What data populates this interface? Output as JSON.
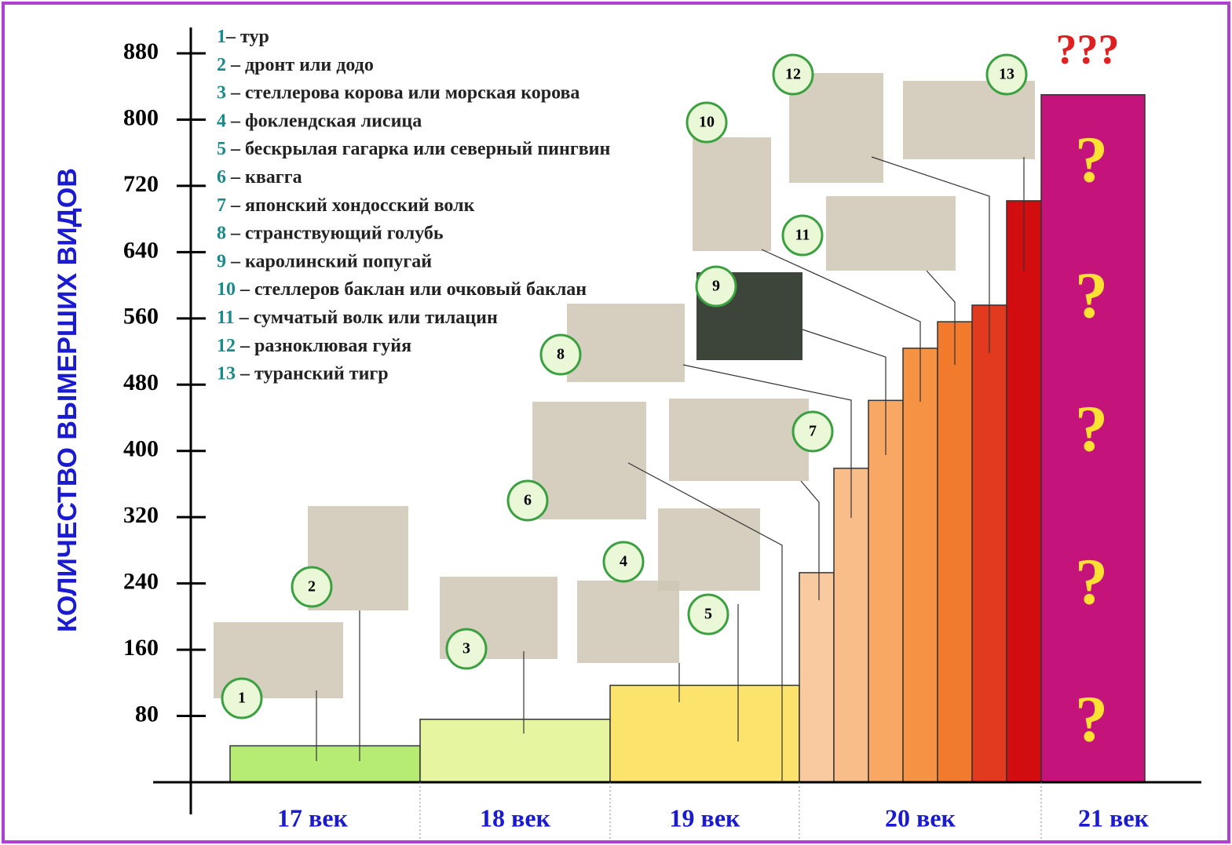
{
  "chart_data": {
    "type": "step-bar",
    "y_label": "КОЛИЧЕСТВО  ВЫМЕРШИХ  ВИДОВ",
    "categories": [
      "17 век",
      "18 век",
      "19 век",
      "20 век",
      "21 век"
    ],
    "steps": {
      "values": [
        44,
        76,
        117,
        253,
        379,
        461,
        524,
        556,
        576,
        702,
        830
      ],
      "colors": [
        "#b6ec74",
        "#e6f6a0",
        "#fbe36c",
        "#f9caa0",
        "#f9bd8a",
        "#f8a862",
        "#f69244",
        "#f17a2c",
        "#e23a1e",
        "#d10d10",
        "#c4137a"
      ]
    },
    "ylim": [
      0,
      880
    ],
    "yticks": [
      80,
      160,
      240,
      320,
      400,
      480,
      560,
      640,
      720,
      800,
      880
    ],
    "legend_items": [
      {
        "number": "1",
        "text": "– тур"
      },
      {
        "number": "2",
        "text": " – дронт  или  додо"
      },
      {
        "number": "3",
        "text": " – стеллерова корова  или  морская корова"
      },
      {
        "number": "4",
        "text": " – фоклендская лисица"
      },
      {
        "number": "5",
        "text": " – бескрылая гагарка или северный пингвин"
      },
      {
        "number": "6",
        "text": " – квагга"
      },
      {
        "number": "7",
        "text": " – японский хондосский волк"
      },
      {
        "number": "8",
        "text": " – странствующий голубь"
      },
      {
        "number": "9",
        "text": " – каролинский попугай"
      },
      {
        "number": "10",
        "text": " – стеллеров баклан или очковый баклан"
      },
      {
        "number": "11",
        "text": " – сумчатый волк или тилацин"
      },
      {
        "number": "12",
        "text": " – разноклювая гуйя"
      },
      {
        "number": "13",
        "text": " – туранский тигр"
      }
    ],
    "question_marks": [
      "?",
      "?",
      "?",
      "?",
      "?"
    ],
    "top_annotation": "???"
  }
}
